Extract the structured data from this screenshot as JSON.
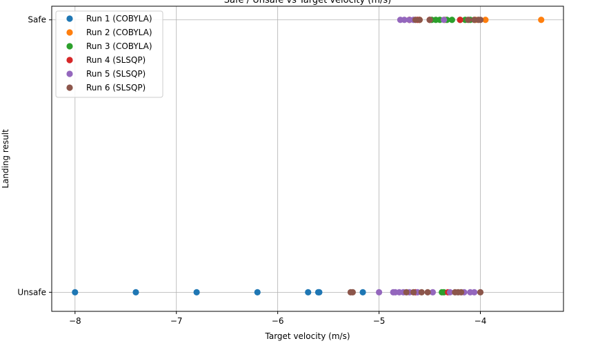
{
  "chart_data": {
    "type": "scatter",
    "title": "Safe / Unsafe vs Target velocity (m/s)",
    "xlabel": "Target velocity (m/s)",
    "ylabel": "Landing result",
    "xlim": [
      -8.23,
      -3.18
    ],
    "ylim": [
      -0.07,
      1.05
    ],
    "x_ticks": [
      -8,
      -7,
      -6,
      -5,
      -4
    ],
    "x_tick_labels": [
      "−8",
      "−7",
      "−6",
      "−5",
      "−4"
    ],
    "y_ticks": [
      0,
      1
    ],
    "y_tick_labels": [
      "Unsafe",
      "Safe"
    ],
    "grid": true,
    "legend_position": "top-left",
    "series": [
      {
        "name": "Run 1 (COBYLA)",
        "color": "#1f77b4",
        "unsafe_x": [
          -8.0,
          -7.4,
          -6.8,
          -6.2,
          -5.7,
          -5.6,
          -5.59,
          -5.16
        ],
        "safe_x": []
      },
      {
        "name": "Run 2 (COBYLA)",
        "color": "#ff7f0e",
        "unsafe_x": [],
        "safe_x": [
          -3.4,
          -3.95,
          -4.05,
          -4.35,
          -4.6,
          -4.7
        ]
      },
      {
        "name": "Run 3 (COBYLA)",
        "color": "#2ca02c",
        "unsafe_x": [
          -4.38,
          -4.36
        ],
        "safe_x": [
          -4.1,
          -4.15,
          -4.2,
          -4.28,
          -4.33,
          -4.4,
          -4.44,
          -4.48
        ]
      },
      {
        "name": "Run 4 (SLSQP)",
        "color": "#d62728",
        "unsafe_x": [
          -4.32,
          -4.64
        ],
        "safe_x": [
          -4.2,
          -4.5,
          -4.62,
          -4.7
        ]
      },
      {
        "name": "Run 5 (SLSQP)",
        "color": "#9467bd",
        "unsafe_x": [
          -5.0,
          -4.86,
          -4.84,
          -4.8,
          -4.76,
          -4.7,
          -4.62,
          -4.47,
          -4.3,
          -4.16,
          -4.1,
          -4.06
        ],
        "safe_x": [
          -4.79,
          -4.75,
          -4.7,
          -4.66,
          -4.36
        ]
      },
      {
        "name": "Run 6 (SLSQP)",
        "color": "#8c564b",
        "unsafe_x": [
          -5.28,
          -5.26,
          -4.73,
          -4.66,
          -4.58,
          -4.52,
          -4.25,
          -4.22,
          -4.19,
          -4.0
        ],
        "safe_x": [
          -4.64,
          -4.6,
          -4.5,
          -4.12,
          -4.06,
          -4.02,
          -4.0
        ]
      }
    ]
  }
}
